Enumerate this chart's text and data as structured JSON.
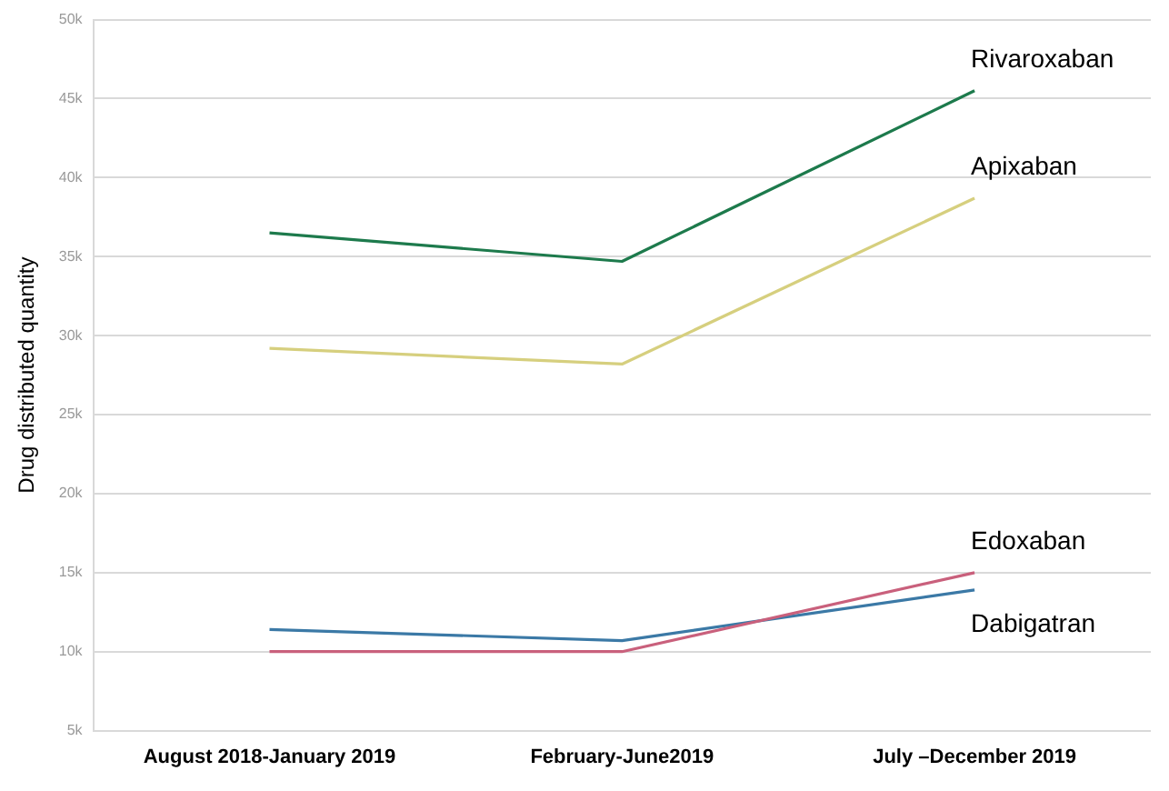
{
  "chart_data": {
    "type": "line",
    "ylabel": "Drug distributed quantity",
    "categories": [
      "August 2018-January 2019",
      "February-June2019",
      "July –December 2019"
    ],
    "series": [
      {
        "name": "Rivaroxaban",
        "color": "#1d7a4c",
        "values": [
          36500,
          34700,
          45500
        ]
      },
      {
        "name": "Apixaban",
        "color": "#d6cf7e",
        "values": [
          29200,
          28200,
          38700
        ]
      },
      {
        "name": "Edoxaban",
        "color": "#c9607c",
        "values": [
          10000,
          10000,
          15000
        ]
      },
      {
        "name": "Dabigatran",
        "color": "#3b79a6",
        "values": [
          11400,
          10700,
          13900
        ]
      }
    ],
    "ylim": [
      5000,
      50000
    ],
    "yticks": [
      {
        "value": 5000,
        "label": "5k"
      },
      {
        "value": 10000,
        "label": "10k"
      },
      {
        "value": 15000,
        "label": "15k"
      },
      {
        "value": 20000,
        "label": "20k"
      },
      {
        "value": 25000,
        "label": "25k"
      },
      {
        "value": 30000,
        "label": "30k"
      },
      {
        "value": 35000,
        "label": "35k"
      },
      {
        "value": 40000,
        "label": "40k"
      },
      {
        "value": 45000,
        "label": "45k"
      },
      {
        "value": 50000,
        "label": "50k"
      }
    ],
    "grid": "y",
    "marker": "none",
    "line_style": "solid"
  }
}
